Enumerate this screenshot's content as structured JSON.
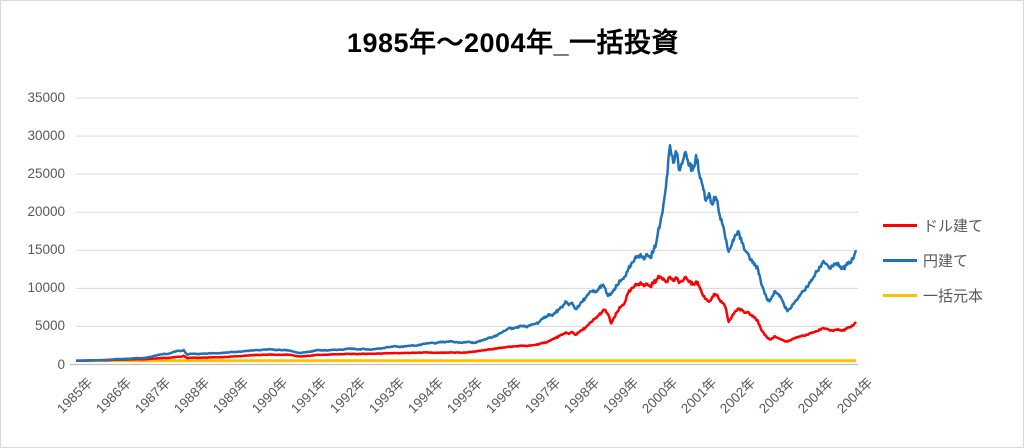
{
  "chart_data": {
    "type": "line",
    "title": "1985年～2004年_一括投資",
    "xlabel": "",
    "ylabel": "",
    "ylim": [
      0,
      35000
    ],
    "y_ticks": [
      0,
      5000,
      10000,
      15000,
      20000,
      25000,
      30000,
      35000
    ],
    "x_tick_labels": [
      "1985年",
      "1986年",
      "1987年",
      "1988年",
      "1989年",
      "1990年",
      "1991年",
      "1992年",
      "1993年",
      "1994年",
      "1995年",
      "1996年",
      "1997年",
      "1998年",
      "1999年",
      "2000年",
      "2001年",
      "2002年",
      "2003年",
      "2004年",
      "2004年"
    ],
    "x_resolution": "monthly, Jan 1985 - Dec 2004",
    "grid": "horizontal",
    "legend_position": "right",
    "colors": {
      "dollar": "#FF0000",
      "yen": "#2072B8",
      "principal": "#FFC000",
      "gridline": "#D9D9D9",
      "axis": "#BFBFBF",
      "tick_text": "#595959"
    },
    "series": [
      {
        "name": "ドル建て",
        "color": "#FF0000",
        "values": [
          500,
          505,
          510,
          515,
          525,
          530,
          540,
          550,
          555,
          565,
          580,
          600,
          620,
          640,
          630,
          650,
          665,
          680,
          670,
          690,
          680,
          700,
          720,
          750,
          780,
          820,
          850,
          880,
          860,
          900,
          950,
          1020,
          1000,
          1150,
          850,
          880,
          900,
          880,
          890,
          910,
          900,
          930,
          950,
          940,
          955,
          970,
          985,
          1010,
          1050,
          1070,
          1090,
          1120,
          1160,
          1190,
          1230,
          1260,
          1240,
          1270,
          1290,
          1300,
          1300,
          1270,
          1290,
          1260,
          1310,
          1280,
          1260,
          1150,
          1080,
          1050,
          1100,
          1130,
          1150,
          1230,
          1280,
          1260,
          1290,
          1270,
          1320,
          1350,
          1330,
          1360,
          1340,
          1400,
          1380,
          1390,
          1370,
          1390,
          1410,
          1400,
          1420,
          1410,
          1430,
          1440,
          1460,
          1480,
          1480,
          1490,
          1500,
          1480,
          1510,
          1520,
          1510,
          1540,
          1530,
          1560,
          1550,
          1570,
          1580,
          1550,
          1520,
          1540,
          1560,
          1530,
          1560,
          1590,
          1560,
          1580,
          1550,
          1560,
          1600,
          1650,
          1700,
          1750,
          1800,
          1870,
          1940,
          1990,
          2050,
          2100,
          2180,
          2250,
          2300,
          2330,
          2360,
          2400,
          2450,
          2480,
          2420,
          2470,
          2540,
          2600,
          2700,
          2800,
          2900,
          3100,
          3300,
          3500,
          3700,
          3900,
          4200,
          4000,
          4300,
          3900,
          4200,
          4500,
          4800,
          5200,
          5600,
          6000,
          6400,
          6800,
          7200,
          6600,
          5400,
          6200,
          7000,
          7600,
          8000,
          9200,
          9800,
          10200,
          10500,
          10800,
          10300,
          10600,
          10200,
          10800,
          11200,
          11500,
          11300,
          10900,
          11500,
          11000,
          11300,
          10800,
          11000,
          11400,
          10900,
          10500,
          10900,
          10300,
          9150,
          8600,
          8250,
          8900,
          9200,
          8600,
          8100,
          7500,
          5600,
          6300,
          7000,
          7350,
          7100,
          6800,
          6900,
          6500,
          6200,
          5600,
          4500,
          3900,
          3450,
          3300,
          3700,
          3500,
          3300,
          3100,
          3000,
          3200,
          3400,
          3600,
          3700,
          3800,
          3900,
          4100,
          4250,
          4350,
          4600,
          4800,
          4700,
          4500,
          4400,
          4600,
          4500,
          4450,
          4700,
          4900,
          5100,
          5600
        ]
      },
      {
        "name": "円建て",
        "color": "#2072B8",
        "values": [
          500,
          510,
          515,
          525,
          535,
          545,
          555,
          570,
          585,
          600,
          620,
          650,
          700,
          720,
          705,
          735,
          760,
          790,
          820,
          850,
          835,
          870,
          950,
          1020,
          1150,
          1250,
          1320,
          1400,
          1380,
          1500,
          1650,
          1800,
          1750,
          1900,
          1300,
          1400,
          1420,
          1380,
          1400,
          1430,
          1410,
          1480,
          1500,
          1470,
          1490,
          1530,
          1560,
          1600,
          1650,
          1620,
          1680,
          1720,
          1760,
          1800,
          1850,
          1900,
          1870,
          1920,
          1950,
          2000,
          1980,
          1900,
          1950,
          1880,
          1920,
          1850,
          1780,
          1650,
          1550,
          1500,
          1600,
          1650,
          1700,
          1800,
          1900,
          1850,
          1880,
          1820,
          1900,
          1950,
          1900,
          1980,
          1950,
          2050,
          2100,
          2050,
          2000,
          1980,
          2050,
          2000,
          1950,
          2000,
          2050,
          2100,
          2150,
          2250,
          2300,
          2350,
          2400,
          2300,
          2350,
          2400,
          2450,
          2500,
          2450,
          2550,
          2650,
          2700,
          2800,
          2850,
          2750,
          2900,
          2950,
          2900,
          3000,
          3050,
          2950,
          2900,
          2850,
          2900,
          3000,
          2900,
          2850,
          2950,
          3100,
          3250,
          3400,
          3550,
          3700,
          3800,
          4100,
          4400,
          4600,
          4800,
          4700,
          4900,
          5000,
          5100,
          4900,
          5100,
          5300,
          5400,
          5600,
          6000,
          6300,
          6600,
          6400,
          6900,
          7200,
          7500,
          8300,
          7800,
          8100,
          7300,
          7600,
          8200,
          8700,
          9200,
          9600,
          9500,
          9800,
          10400,
          10100,
          9000,
          9300,
          9800,
          10500,
          11000,
          11500,
          12200,
          13000,
          13600,
          14200,
          14500,
          13800,
          14500,
          14000,
          15000,
          16500,
          18500,
          21000,
          24500,
          28800,
          26500,
          27800,
          25500,
          26800,
          27600,
          26200,
          25500,
          27500,
          25000,
          23500,
          21500,
          22500,
          21000,
          22000,
          20000,
          18500,
          16500,
          14800,
          15800,
          17000,
          17500,
          16000,
          15000,
          14500,
          13800,
          13200,
          12500,
          10500,
          9300,
          8400,
          8600,
          9600,
          9300,
          8800,
          7800,
          7000,
          7400,
          8000,
          8600,
          9200,
          9700,
          10200,
          10800,
          11500,
          12200,
          12800,
          13600,
          13200,
          12600,
          12900,
          13300,
          12800,
          12600,
          13000,
          13400,
          13800,
          15000
        ]
      },
      {
        "name": "一括元本",
        "color": "#FFC000",
        "constant": 500
      }
    ]
  }
}
